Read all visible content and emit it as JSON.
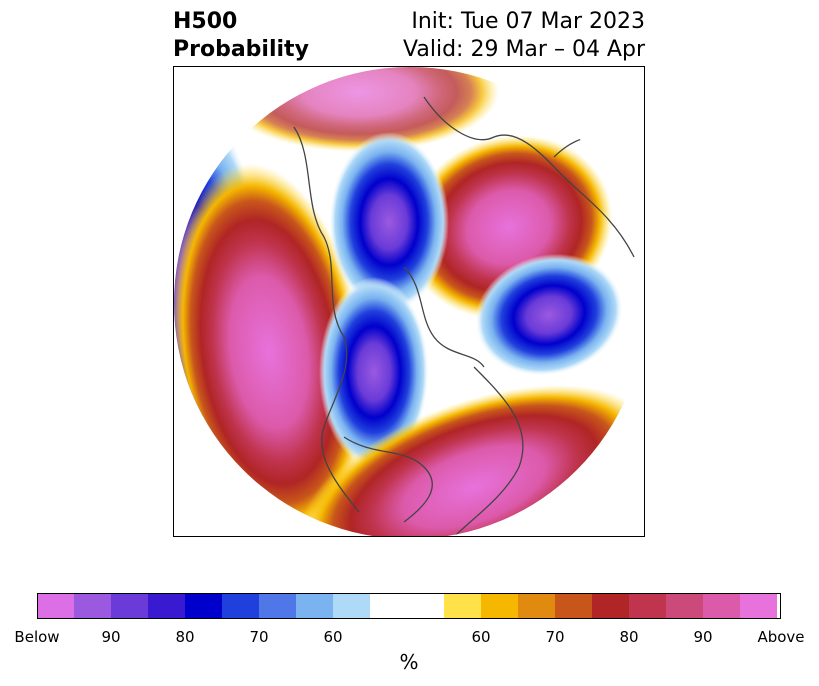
{
  "title": {
    "left_line1": "H500",
    "left_line2": "Probability",
    "right_line1": "Init: Tue 07 Mar 2023",
    "right_line2": "Valid: 29 Mar – 04 Apr"
  },
  "colorbar": {
    "unit": "%",
    "tick_labels": [
      "Below",
      "90",
      "80",
      "70",
      "60",
      "60",
      "70",
      "80",
      "90",
      "Above"
    ],
    "colors": [
      "#dc6ee6",
      "#9b59e0",
      "#6a3bd8",
      "#3a1ad0",
      "#0000cc",
      "#2040dd",
      "#4f77e8",
      "#7ab3f0",
      "#aed9f7",
      "#ffffff",
      "#ffe14a",
      "#f5b700",
      "#e08a10",
      "#c8561b",
      "#b02525",
      "#c0344e",
      "#cc4a7a",
      "#dc5aaa",
      "#e772dc"
    ]
  }
}
